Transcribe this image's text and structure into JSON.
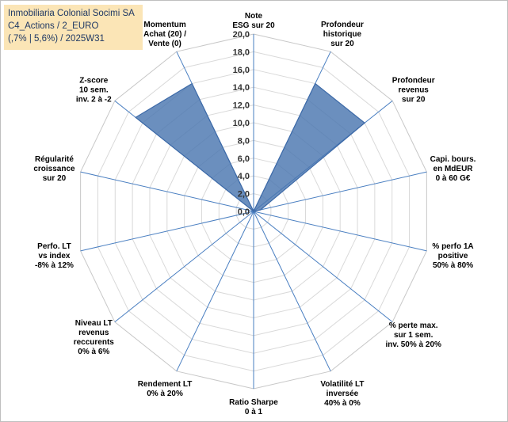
{
  "header": {
    "line1": "Inmobiliaria Colonial Socimi SA",
    "line2": "C4_Actions / 2_EURO",
    "line3": "(,7% | 5,6%) / 2025W31"
  },
  "colors": {
    "fill": "#4a76b0",
    "stroke": "#3d6aa8",
    "grid": "#d9d9d9",
    "spoke": "#4a7fc1",
    "title_bg": "#fbe5b6"
  },
  "chart_data": {
    "type": "radar",
    "title": "",
    "rlim": [
      0,
      20
    ],
    "tick_step": 2,
    "tick_labels": [
      "0,0",
      "2,0",
      "4,0",
      "6,0",
      "8,0",
      "10,0",
      "12,0",
      "14,0",
      "16,0",
      "18,0",
      "20,0"
    ],
    "grid": true,
    "axes": [
      {
        "label": [
          "Note",
          "ESG sur 20"
        ],
        "value": 0
      },
      {
        "label": [
          "Profondeur",
          "historique",
          "sur 20"
        ],
        "value": 16
      },
      {
        "label": [
          "Profondeur",
          "revenus",
          "sur 20"
        ],
        "value": 16
      },
      {
        "label": [
          "Capi. bours.",
          "en MdEUR",
          "0 à 60 G€"
        ],
        "value": 0.8
      },
      {
        "label": [
          "% perfo 1A",
          "positive",
          "50% à 80%"
        ],
        "value": 0
      },
      {
        "label": [
          "% perte max.",
          "sur 1 sem.",
          "inv. 50% à 20%"
        ],
        "value": 0
      },
      {
        "label": [
          "Volatilité LT",
          "inversée",
          "40% à 0%"
        ],
        "value": 0
      },
      {
        "label": [
          "Ratio Sharpe",
          "0 à 1"
        ],
        "value": 0
      },
      {
        "label": [
          "Rendement LT",
          "0% à 20%"
        ],
        "value": 0
      },
      {
        "label": [
          "Niveau LT",
          "revenus",
          "reccurents",
          "0% à 6%"
        ],
        "value": 0
      },
      {
        "label": [
          "Perfo. LT",
          "vs index",
          "-8% à 12%"
        ],
        "value": 0
      },
      {
        "label": [
          "Régularité",
          "croissance",
          "sur 20"
        ],
        "value": 0
      },
      {
        "label": [
          "Z-score",
          "10 sem.",
          "inv. 2 à -2"
        ],
        "value": 17
      },
      {
        "label": [
          "Momentum",
          "Achat (20) /",
          "Vente (0)"
        ],
        "value": 16
      }
    ],
    "series": [
      {
        "name": ""
      }
    ]
  }
}
